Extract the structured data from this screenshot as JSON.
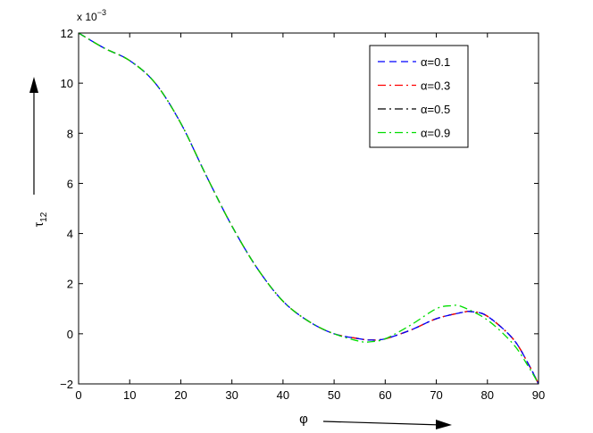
{
  "chart_data": {
    "type": "line",
    "title": "",
    "xlabel": "φ",
    "ylabel": "τ",
    "ylabel_subscript": "12",
    "y_multiplier": "x 10",
    "y_multiplier_exp": "−3",
    "xlim": [
      0,
      90
    ],
    "ylim": [
      -2,
      12
    ],
    "x_ticks": [
      0,
      10,
      20,
      30,
      40,
      50,
      60,
      70,
      80,
      90
    ],
    "y_ticks": [
      -2,
      0,
      2,
      4,
      6,
      8,
      10,
      12
    ],
    "grid": false,
    "legend_position": "top-right",
    "series": [
      {
        "name": "α=0.1",
        "color": "#0000ff",
        "dash": "dashed",
        "x": [
          0,
          5,
          10,
          15,
          20,
          25,
          30,
          35,
          40,
          45,
          50,
          55,
          57,
          60,
          65,
          70,
          75,
          77,
          80,
          85,
          88,
          90
        ],
        "y": [
          12.0,
          11.4,
          10.9,
          10.0,
          8.4,
          6.3,
          4.3,
          2.6,
          1.3,
          0.5,
          0.0,
          -0.2,
          -0.25,
          -0.2,
          0.15,
          0.6,
          0.85,
          0.88,
          0.7,
          -0.2,
          -1.2,
          -2.0
        ]
      },
      {
        "name": "α=0.3",
        "color": "#ff0000",
        "dash": "dashdot",
        "x": [
          0,
          5,
          10,
          15,
          20,
          25,
          30,
          35,
          40,
          45,
          50,
          55,
          57,
          60,
          65,
          70,
          75,
          77,
          80,
          85,
          88,
          90
        ],
        "y": [
          12.0,
          11.4,
          10.9,
          10.0,
          8.4,
          6.3,
          4.3,
          2.6,
          1.3,
          0.5,
          0.0,
          -0.2,
          -0.25,
          -0.2,
          0.15,
          0.6,
          0.85,
          0.88,
          0.7,
          -0.2,
          -1.2,
          -2.0
        ]
      },
      {
        "name": "α=0.5",
        "color": "#000000",
        "dash": "dashdot",
        "x": [
          0,
          5,
          10,
          15,
          20,
          25,
          30,
          35,
          40,
          45,
          50,
          55,
          57,
          60,
          65,
          70,
          75,
          77,
          80,
          85,
          88,
          90
        ],
        "y": [
          12.0,
          11.4,
          10.9,
          10.0,
          8.4,
          6.3,
          4.3,
          2.6,
          1.3,
          0.5,
          0.0,
          -0.2,
          -0.25,
          -0.2,
          0.15,
          0.6,
          0.85,
          0.88,
          0.7,
          -0.2,
          -1.2,
          -2.0
        ]
      },
      {
        "name": "α=0.9",
        "color": "#00dd00",
        "dash": "dashdot",
        "x": [
          0,
          5,
          10,
          15,
          20,
          25,
          30,
          35,
          40,
          45,
          50,
          55,
          57,
          60,
          65,
          70,
          73,
          75,
          80,
          85,
          88,
          90
        ],
        "y": [
          12.0,
          11.4,
          10.9,
          10.0,
          8.4,
          6.3,
          4.3,
          2.6,
          1.3,
          0.5,
          0.0,
          -0.3,
          -0.32,
          -0.2,
          0.35,
          1.0,
          1.12,
          1.08,
          0.55,
          -0.4,
          -1.3,
          -2.0
        ]
      }
    ]
  }
}
